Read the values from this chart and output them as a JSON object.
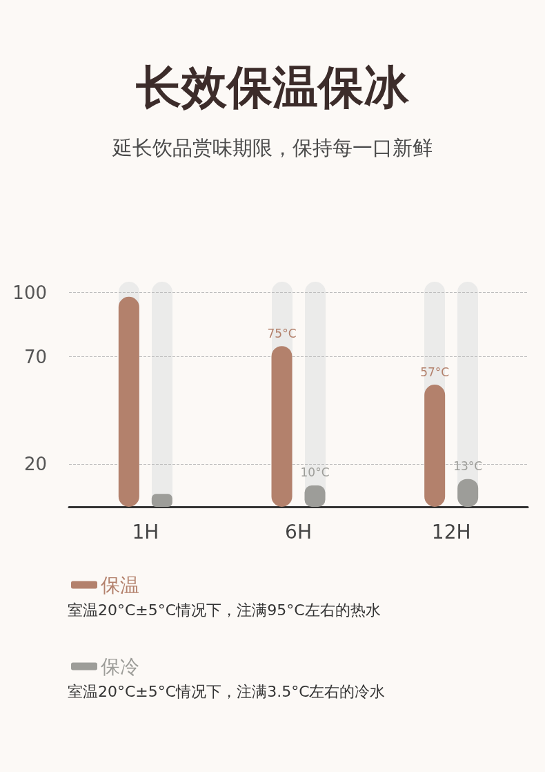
{
  "chart_data": {
    "type": "bar",
    "title": "长效保温保冰",
    "subtitle": "延长饮品赏味期限，保持每一口新鲜",
    "categories": [
      "1H",
      "6H",
      "12H"
    ],
    "series": [
      {
        "name": "保温",
        "color": "#b3816c",
        "values": [
          98,
          75,
          57
        ],
        "value_labels": [
          null,
          "75°C",
          "57°C"
        ]
      },
      {
        "name": "保冷",
        "color": "#9d9d99",
        "values": [
          6,
          10,
          13
        ],
        "value_labels": [
          null,
          "10°C",
          "13°C"
        ]
      }
    ],
    "ylim": [
      0,
      105
    ],
    "yticks": [
      20,
      70,
      100
    ],
    "grid": "y",
    "legend": "bottom left",
    "annotations": [
      "室温20°C±5°C情况下，注满95°C左右的热水",
      "室温20°C±5°C情况下，注满3.5°C左右的冷水"
    ]
  }
}
